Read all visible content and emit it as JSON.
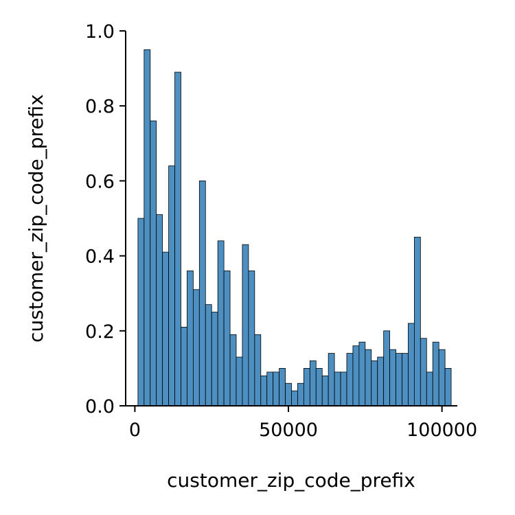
{
  "chart_data": {
    "type": "bar",
    "title": "",
    "xlabel": "customer_zip_code_prefix",
    "ylabel": "customer_zip_code_prefix",
    "xlim": [
      -3000,
      105000
    ],
    "ylim": [
      0,
      1.0
    ],
    "x_ticks": [
      0,
      50000,
      100000
    ],
    "x_tick_labels": [
      "0",
      "50000",
      "100000"
    ],
    "y_ticks": [
      0,
      0.2,
      0.4,
      0.6,
      0.8,
      1.0
    ],
    "y_tick_labels": [
      "0.0",
      "0.2",
      "0.4",
      "0.6",
      "0.8",
      "1.0"
    ],
    "grid": false,
    "legend": "none",
    "bin_start": 1000,
    "bin_width": 2000,
    "values": [
      0.5,
      0.95,
      0.76,
      0.51,
      0.41,
      0.64,
      0.89,
      0.21,
      0.36,
      0.31,
      0.6,
      0.27,
      0.25,
      0.44,
      0.36,
      0.19,
      0.13,
      0.43,
      0.36,
      0.19,
      0.08,
      0.09,
      0.09,
      0.1,
      0.06,
      0.04,
      0.06,
      0.1,
      0.12,
      0.1,
      0.08,
      0.14,
      0.09,
      0.09,
      0.14,
      0.16,
      0.17,
      0.15,
      0.12,
      0.13,
      0.2,
      0.15,
      0.14,
      0.14,
      0.22,
      0.45,
      0.18,
      0.09,
      0.17,
      0.15,
      0.1
    ],
    "bar_color": "#4c8fc0",
    "edge_color": "#000000"
  }
}
